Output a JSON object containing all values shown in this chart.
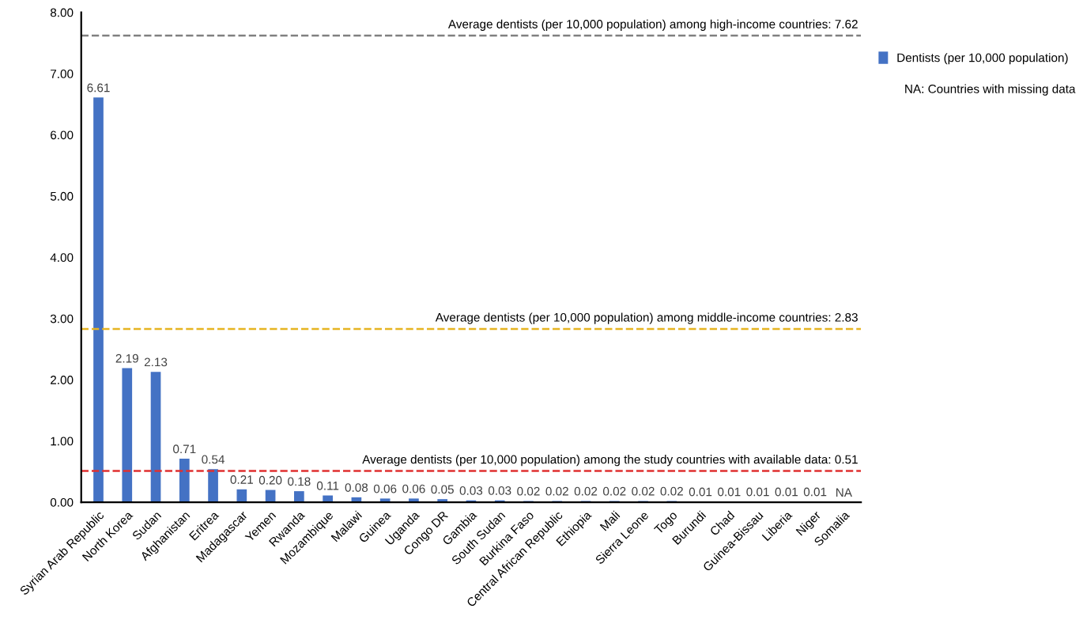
{
  "chart_data": {
    "type": "bar",
    "categories": [
      "Syrian Arab Republic",
      "North Korea",
      "Sudan",
      "Afghanistan",
      "Eritrea",
      "Madagascar",
      "Yemen",
      "Rwanda",
      "Mozambique",
      "Malawi",
      "Guinea",
      "Uganda",
      "Congo DR",
      "Gambia",
      "South Sudan",
      "Burkina Faso",
      "Central African Republic",
      "Ethiopia",
      "Mali",
      "Sierra Leone",
      "Togo",
      "Burundi",
      "Chad",
      "Guinea-Bissau",
      "Liberia",
      "Niger",
      "Somalia"
    ],
    "series": [
      {
        "name": "Dentists (per 10,000 population)",
        "color": "#4472c4",
        "values": [
          6.61,
          2.19,
          2.13,
          0.71,
          0.54,
          0.21,
          0.2,
          0.18,
          0.11,
          0.08,
          0.06,
          0.06,
          0.05,
          0.03,
          0.03,
          0.02,
          0.02,
          0.02,
          0.02,
          0.02,
          0.02,
          0.01,
          0.01,
          0.01,
          0.01,
          0.01,
          null
        ],
        "value_labels": [
          "6.61",
          "2.19",
          "2.13",
          "0.71",
          "0.54",
          "0.21",
          "0.20",
          "0.18",
          "0.11",
          "0.08",
          "0.06",
          "0.06",
          "0.05",
          "0.03",
          "0.03",
          "0.02",
          "0.02",
          "0.02",
          "0.02",
          "0.02",
          "0.02",
          "0.01",
          "0.01",
          "0.01",
          "0.01",
          "0.01",
          "NA"
        ]
      }
    ],
    "ylim": [
      0,
      8
    ],
    "yticks": [
      {
        "value": 0,
        "label": "0.00"
      },
      {
        "value": 1,
        "label": "1.00"
      },
      {
        "value": 2,
        "label": "2.00"
      },
      {
        "value": 3,
        "label": "3.00"
      },
      {
        "value": 4,
        "label": "4.00"
      },
      {
        "value": 5,
        "label": "5.00"
      },
      {
        "value": 6,
        "label": "6.00"
      },
      {
        "value": 7,
        "label": "7.00"
      },
      {
        "value": 8,
        "label": "8.00"
      }
    ],
    "ref_lines": [
      {
        "axis": "y",
        "value": 7.62,
        "label": "Average dentists (per 10,000 population) among high-income countries: 7.62",
        "color": "#808080",
        "line_style": "dashed"
      },
      {
        "axis": "y",
        "value": 2.83,
        "label": "Average dentists (per 10,000 population) among middle-income countries: 2.83",
        "color": "#e6b422",
        "line_style": "dashed"
      },
      {
        "axis": "y",
        "value": 0.51,
        "label": "Average dentists (per 10,000 population) among the study countries with available data: 0.51",
        "color": "#e03030",
        "line_style": "dashed"
      }
    ],
    "annotations": [
      "NA: Countries with missing data"
    ],
    "legend": "right",
    "grid": false
  }
}
